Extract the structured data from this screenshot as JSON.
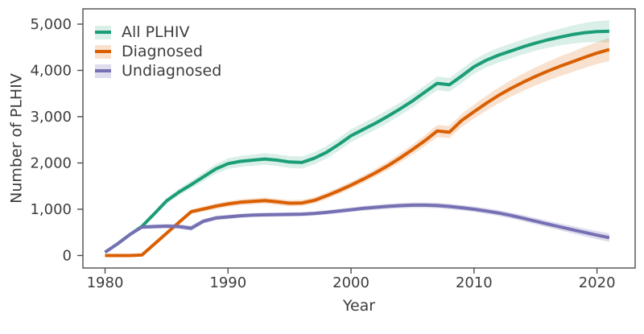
{
  "figure": {
    "background": "#ffffff",
    "text_color": "#3d3d3d",
    "axis_color": "#4d4d4d"
  },
  "chart_data": {
    "type": "line",
    "title": "",
    "xlabel": "Year",
    "ylabel": "Number of PLHIV",
    "grid": false,
    "legend_position": "top-left",
    "xlim": [
      1978.2,
      2023.1
    ],
    "ylim": [
      -270,
      5330
    ],
    "x_ticks": [
      1980,
      1990,
      2000,
      2010,
      2020
    ],
    "x_tick_labels": [
      "1980",
      "1990",
      "2000",
      "2010",
      "2020"
    ],
    "y_ticks": [
      0,
      1000,
      2000,
      3000,
      4000,
      5000
    ],
    "y_tick_labels": [
      "0",
      "1,000",
      "2,000",
      "3,000",
      "4,000",
      "5,000"
    ],
    "x": [
      1980,
      1981,
      1982,
      1983,
      1984,
      1985,
      1986,
      1987,
      1988,
      1989,
      1990,
      1991,
      1992,
      1993,
      1994,
      1995,
      1996,
      1997,
      1998,
      1999,
      2000,
      2001,
      2002,
      2003,
      2004,
      2005,
      2006,
      2007,
      2008,
      2009,
      2010,
      2011,
      2012,
      2013,
      2014,
      2015,
      2016,
      2017,
      2018,
      2019,
      2020,
      2021
    ],
    "series": [
      {
        "name": "All PLHIV",
        "color": "#1B9E77",
        "band_color": "rgba(27,158,119,0.17)",
        "values": [
          70,
          250,
          450,
          630,
          900,
          1180,
          1370,
          1530,
          1700,
          1870,
          1985,
          2035,
          2060,
          2085,
          2060,
          2020,
          2010,
          2100,
          2230,
          2400,
          2590,
          2725,
          2860,
          3010,
          3170,
          3340,
          3530,
          3720,
          3690,
          3880,
          4080,
          4220,
          4330,
          4420,
          4510,
          4590,
          4660,
          4720,
          4775,
          4815,
          4840,
          4845
        ],
        "band_halfwidth": [
          20,
          25,
          32,
          40,
          50,
          60,
          70,
          80,
          95,
          105,
          115,
          120,
          122,
          125,
          125,
          128,
          130,
          132,
          135,
          138,
          140,
          140,
          140,
          140,
          140,
          142,
          145,
          148,
          150,
          150,
          152,
          155,
          158,
          160,
          162,
          165,
          172,
          180,
          195,
          210,
          225,
          240
        ]
      },
      {
        "name": "Diagnosed",
        "color": "#D95F02",
        "band_color": "rgba(217,95,2,0.19)",
        "values": [
          0,
          0,
          0,
          10,
          245,
          480,
          715,
          945,
          1005,
          1065,
          1115,
          1150,
          1170,
          1185,
          1160,
          1130,
          1135,
          1190,
          1290,
          1400,
          1520,
          1650,
          1790,
          1940,
          2110,
          2290,
          2480,
          2690,
          2665,
          2920,
          3110,
          3290,
          3460,
          3610,
          3745,
          3870,
          3985,
          4090,
          4185,
          4285,
          4375,
          4450
        ],
        "band_halfwidth": [
          8,
          8,
          8,
          12,
          25,
          35,
          42,
          50,
          55,
          60,
          63,
          65,
          66,
          68,
          68,
          68,
          68,
          70,
          72,
          74,
          76,
          80,
          85,
          92,
          100,
          108,
          118,
          128,
          132,
          140,
          150,
          160,
          170,
          178,
          188,
          196,
          205,
          212,
          220,
          228,
          238,
          248
        ]
      },
      {
        "name": "Undiagnosed",
        "color": "#7570B3",
        "band_color": "rgba(117,112,179,0.24)",
        "values": [
          70,
          250,
          450,
          615,
          625,
          635,
          625,
          590,
          740,
          810,
          835,
          858,
          872,
          880,
          884,
          888,
          893,
          908,
          932,
          960,
          990,
          1018,
          1042,
          1062,
          1078,
          1088,
          1088,
          1080,
          1060,
          1032,
          1000,
          962,
          918,
          865,
          805,
          742,
          680,
          618,
          558,
          498,
          440,
          385
        ],
        "band_halfwidth": [
          18,
          28,
          38,
          45,
          48,
          50,
          52,
          55,
          52,
          50,
          48,
          46,
          45,
          45,
          45,
          45,
          45,
          46,
          47,
          48,
          50,
          52,
          54,
          56,
          58,
          60,
          60,
          60,
          60,
          60,
          60,
          62,
          64,
          66,
          68,
          70,
          73,
          76,
          80,
          84,
          88,
          92
        ]
      }
    ]
  }
}
